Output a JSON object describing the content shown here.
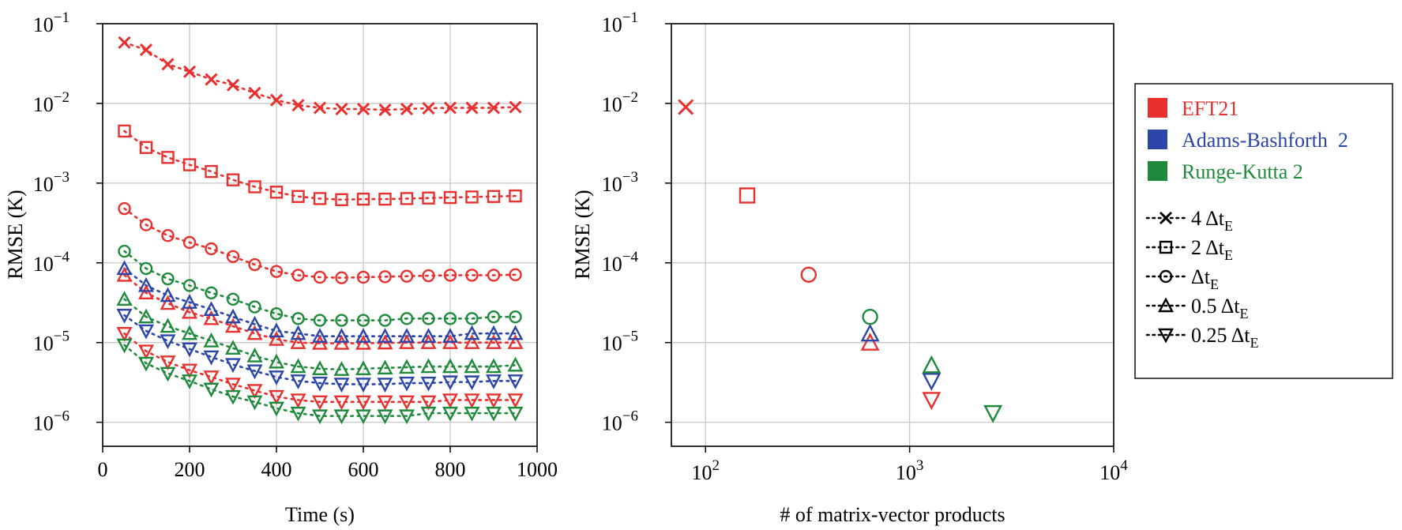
{
  "colors": {
    "EFT21": "#e8312f",
    "Adams-Bashforth 2": "#2b45a8",
    "Runge-Kutta 2": "#1f8a3c",
    "grid": "#c8c8c8",
    "axis": "#000000"
  },
  "legend": {
    "methods": [
      {
        "label": "EFT21",
        "key": "EFT21"
      },
      {
        "label": "Adams-Bashforth  2",
        "key": "Adams-Bashforth 2"
      },
      {
        "label": "Runge-Kutta 2",
        "key": "Runge-Kutta 2"
      }
    ],
    "steps": [
      {
        "marker": "x",
        "prefix": "4 Δt",
        "sub": "E"
      },
      {
        "marker": "square",
        "prefix": "2 Δt",
        "sub": "E"
      },
      {
        "marker": "circle",
        "prefix": "Δt",
        "sub": "E"
      },
      {
        "marker": "triangle-up",
        "prefix": "0.5 Δt",
        "sub": "E"
      },
      {
        "marker": "triangle-down",
        "prefix": "0.25 Δt",
        "sub": "E"
      }
    ]
  },
  "chart_data": [
    {
      "type": "line",
      "xlabel": "Time (s)",
      "ylabel": "RMSE (K)",
      "xscale": "linear",
      "yscale": "log",
      "xlim": [
        0,
        1000
      ],
      "ylim": [
        5e-07,
        0.1
      ],
      "xticks": [
        "0",
        "200",
        "400",
        "600",
        "800",
        "1000"
      ],
      "yticks": [
        "10^-6",
        "10^-5",
        "10^-4",
        "10^-3",
        "10^-2",
        "10^-1"
      ],
      "grid": true,
      "x": [
        50,
        100,
        150,
        200,
        250,
        300,
        350,
        400,
        450,
        500,
        550,
        600,
        650,
        700,
        750,
        800,
        850,
        900,
        950
      ],
      "series": [
        {
          "name": "EFT21",
          "marker": "x",
          "values": [
            0.058,
            0.047,
            0.031,
            0.025,
            0.02,
            0.017,
            0.0135,
            0.011,
            0.0095,
            0.0088,
            0.0085,
            0.0085,
            0.0083,
            0.0085,
            0.0087,
            0.0088,
            0.0088,
            0.0088,
            0.009
          ]
        },
        {
          "name": "EFT21",
          "marker": "square",
          "values": [
            0.0045,
            0.0028,
            0.0021,
            0.0017,
            0.0014,
            0.0011,
            0.0009,
            0.00077,
            0.00068,
            0.00064,
            0.00062,
            0.00063,
            0.00063,
            0.00064,
            0.00065,
            0.00066,
            0.00067,
            0.00068,
            0.00069
          ]
        },
        {
          "name": "EFT21",
          "marker": "circle",
          "values": [
            0.00048,
            0.0003,
            0.00022,
            0.00018,
            0.00015,
            0.00012,
            9.5e-05,
            7.8e-05,
            7e-05,
            6.6e-05,
            6.5e-05,
            6.6e-05,
            6.7e-05,
            6.8e-05,
            6.9e-05,
            7e-05,
            7e-05,
            7e-05,
            7.1e-05
          ]
        },
        {
          "name": "EFT21",
          "marker": "triangle-up",
          "values": [
            7e-05,
            4.2e-05,
            3.1e-05,
            2.4e-05,
            2e-05,
            1.6e-05,
            1.3e-05,
            1.1e-05,
            1e-05,
            9.8e-06,
            9.8e-06,
            9.8e-06,
            9.9e-06,
            1e-05,
            1e-05,
            1e-05,
            1e-05,
            1e-05,
            1e-05
          ]
        },
        {
          "name": "EFT21",
          "marker": "triangle-down",
          "values": [
            1.3e-05,
            7.8e-06,
            5.7e-06,
            4.5e-06,
            3.7e-06,
            3e-06,
            2.5e-06,
            2.1e-06,
            1.9e-06,
            1.8e-06,
            1.8e-06,
            1.8e-06,
            1.8e-06,
            1.8e-06,
            1.8e-06,
            1.9e-06,
            1.9e-06,
            1.9e-06,
            1.9e-06
          ]
        },
        {
          "name": "Adams-Bashforth  2",
          "marker": "triangle-up",
          "values": [
            8.5e-05,
            5.2e-05,
            3.9e-05,
            3.2e-05,
            2.6e-05,
            2.1e-05,
            1.7e-05,
            1.4e-05,
            1.3e-05,
            1.2e-05,
            1.2e-05,
            1.2e-05,
            1.2e-05,
            1.2e-05,
            1.2e-05,
            1.2e-05,
            1.3e-05,
            1.3e-05,
            1.3e-05
          ]
        },
        {
          "name": "Adams-Bashforth  2",
          "marker": "triangle-down",
          "values": [
            2.2e-05,
            1.4e-05,
            1.05e-05,
            8.3e-06,
            6.6e-06,
            5.3e-06,
            4.4e-06,
            3.7e-06,
            3.3e-06,
            3.1e-06,
            3e-06,
            3e-06,
            3e-06,
            3.1e-06,
            3.1e-06,
            3.2e-06,
            3.2e-06,
            3.3e-06,
            3.3e-06
          ]
        },
        {
          "name": "Runge-Kutta 2",
          "marker": "circle",
          "values": [
            0.00014,
            8.5e-05,
            6.3e-05,
            5.2e-05,
            4.2e-05,
            3.5e-05,
            2.8e-05,
            2.3e-05,
            2e-05,
            1.9e-05,
            1.9e-05,
            1.9e-05,
            1.9e-05,
            2e-05,
            2e-05,
            2e-05,
            2e-05,
            2.1e-05,
            2.1e-05
          ]
        },
        {
          "name": "Runge-Kutta 2",
          "marker": "triangle-up",
          "values": [
            3.5e-05,
            2.1e-05,
            1.6e-05,
            1.3e-05,
            1.05e-05,
            8.5e-06,
            6.8e-06,
            5.7e-06,
            5e-06,
            4.7e-06,
            4.6e-06,
            4.7e-06,
            4.8e-06,
            4.9e-06,
            5e-06,
            5e-06,
            5e-06,
            5e-06,
            5.2e-06
          ]
        },
        {
          "name": "Runge-Kutta 2",
          "marker": "triangle-down",
          "values": [
            9.3e-06,
            5.5e-06,
            4.1e-06,
            3.3e-06,
            2.6e-06,
            2.1e-06,
            1.8e-06,
            1.5e-06,
            1.3e-06,
            1.2e-06,
            1.2e-06,
            1.2e-06,
            1.2e-06,
            1.2e-06,
            1.3e-06,
            1.3e-06,
            1.3e-06,
            1.3e-06,
            1.3e-06
          ]
        }
      ]
    },
    {
      "type": "scatter",
      "xlabel": "# of matrix-vector products",
      "ylabel": "RMSE (K)",
      "xscale": "log",
      "yscale": "log",
      "xlim": [
        68,
        10000
      ],
      "ylim": [
        5e-07,
        0.1
      ],
      "xticks": [
        "10^2",
        "10^3",
        "10^4"
      ],
      "yticks": [
        "10^-6",
        "10^-5",
        "10^-4",
        "10^-3",
        "10^-2",
        "10^-1"
      ],
      "grid": true,
      "points": [
        {
          "series": "EFT21",
          "marker": "x",
          "x": 80,
          "y": 0.009
        },
        {
          "series": "EFT21",
          "marker": "square",
          "x": 160,
          "y": 0.0007
        },
        {
          "series": "EFT21",
          "marker": "circle",
          "x": 320,
          "y": 7.1e-05
        },
        {
          "series": "EFT21",
          "marker": "triangle-up",
          "x": 640,
          "y": 1e-05
        },
        {
          "series": "EFT21",
          "marker": "triangle-down",
          "x": 1280,
          "y": 1.9e-06
        },
        {
          "series": "Adams-Bashforth  2",
          "marker": "triangle-up",
          "x": 640,
          "y": 1.3e-05
        },
        {
          "series": "Adams-Bashforth  2",
          "marker": "triangle-down",
          "x": 1280,
          "y": 3.3e-06
        },
        {
          "series": "Runge-Kutta 2",
          "marker": "circle",
          "x": 640,
          "y": 2.1e-05
        },
        {
          "series": "Runge-Kutta 2",
          "marker": "triangle-up",
          "x": 1280,
          "y": 5.2e-06
        },
        {
          "series": "Runge-Kutta 2",
          "marker": "triangle-down",
          "x": 2560,
          "y": 1.3e-06
        }
      ]
    }
  ]
}
